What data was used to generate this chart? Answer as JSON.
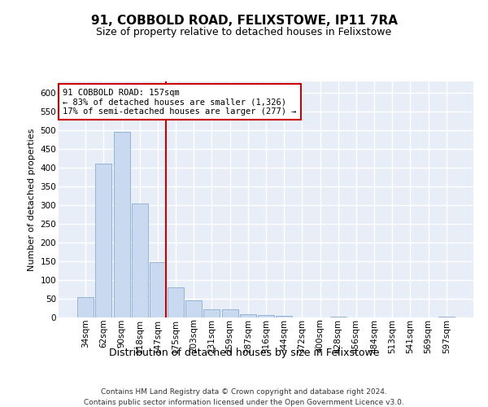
{
  "title": "91, COBBOLD ROAD, FELIXSTOWE, IP11 7RA",
  "subtitle": "Size of property relative to detached houses in Felixstowe",
  "xlabel": "Distribution of detached houses by size in Felixstowe",
  "ylabel": "Number of detached properties",
  "footnote1": "Contains HM Land Registry data © Crown copyright and database right 2024.",
  "footnote2": "Contains public sector information licensed under the Open Government Licence v3.0.",
  "annotation_line1": "91 COBBOLD ROAD: 157sqm",
  "annotation_line2": "← 83% of detached houses are smaller (1,326)",
  "annotation_line3": "17% of semi-detached houses are larger (277) →",
  "bar_color": "#c9d9f0",
  "bar_edge_color": "#7aa0c8",
  "vline_color": "#cc0000",
  "categories": [
    "34sqm",
    "62sqm",
    "90sqm",
    "118sqm",
    "147sqm",
    "175sqm",
    "203sqm",
    "231sqm",
    "259sqm",
    "287sqm",
    "316sqm",
    "344sqm",
    "372sqm",
    "400sqm",
    "428sqm",
    "456sqm",
    "484sqm",
    "513sqm",
    "541sqm",
    "569sqm",
    "597sqm"
  ],
  "values": [
    55,
    410,
    495,
    305,
    148,
    80,
    45,
    22,
    22,
    8,
    7,
    5,
    0,
    0,
    3,
    0,
    0,
    0,
    0,
    0,
    3
  ],
  "ylim": [
    0,
    630
  ],
  "yticks": [
    0,
    50,
    100,
    150,
    200,
    250,
    300,
    350,
    400,
    450,
    500,
    550,
    600
  ],
  "bg_color": "#e8eef8",
  "grid_color": "#ffffff",
  "vline_bar_index": 4,
  "title_fontsize": 11,
  "subtitle_fontsize": 9,
  "xlabel_fontsize": 9,
  "ylabel_fontsize": 8,
  "tick_fontsize": 7.5,
  "annotation_fontsize": 7.5,
  "footnote_fontsize": 6.5
}
